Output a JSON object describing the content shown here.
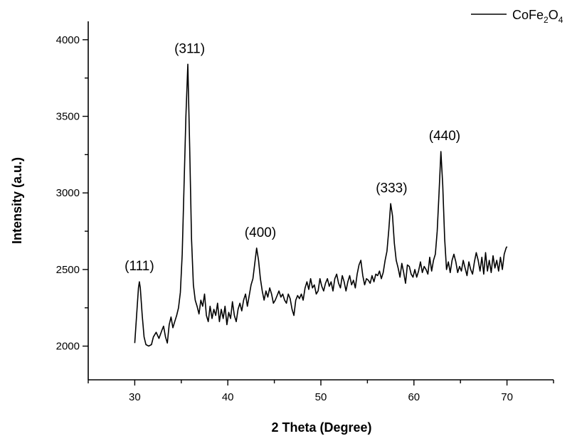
{
  "chart_data": {
    "type": "line",
    "xlabel": "2 Theta (Degree)",
    "ylabel": "Intensity (a.u.)",
    "xlim": [
      25,
      75
    ],
    "ylim": [
      1780,
      4120
    ],
    "xticks": [
      30,
      40,
      50,
      60,
      70
    ],
    "yticks": [
      2000,
      2500,
      3000,
      3500,
      4000
    ],
    "grid": false,
    "legend": {
      "placement": "top-right"
    },
    "series": [
      {
        "name": "CoFe2O4",
        "color": "#000000",
        "x": [
          30,
          30.2,
          30.4,
          30.5,
          30.6,
          30.8,
          31,
          31.2,
          31.5,
          31.8,
          32,
          32.3,
          32.6,
          32.9,
          33.1,
          33.3,
          33.5,
          33.7,
          33.9,
          34.1,
          34.3,
          34.5,
          34.7,
          34.9,
          35.1,
          35.3,
          35.5,
          35.7,
          35.9,
          36.1,
          36.3,
          36.5,
          36.7,
          36.9,
          37.1,
          37.3,
          37.5,
          37.7,
          37.9,
          38.1,
          38.3,
          38.5,
          38.7,
          38.9,
          39.1,
          39.3,
          39.5,
          39.7,
          39.9,
          40.1,
          40.3,
          40.5,
          40.7,
          40.9,
          41.1,
          41.3,
          41.5,
          41.7,
          41.9,
          42.1,
          42.3,
          42.5,
          42.7,
          42.9,
          43.1,
          43.3,
          43.5,
          43.7,
          43.9,
          44.1,
          44.3,
          44.5,
          44.7,
          44.9,
          45.1,
          45.3,
          45.5,
          45.7,
          45.9,
          46.1,
          46.3,
          46.5,
          46.7,
          46.9,
          47.1,
          47.3,
          47.5,
          47.7,
          47.9,
          48.1,
          48.3,
          48.5,
          48.7,
          48.9,
          49.1,
          49.3,
          49.5,
          49.7,
          49.9,
          50.1,
          50.3,
          50.5,
          50.7,
          50.9,
          51.1,
          51.3,
          51.5,
          51.7,
          51.9,
          52.1,
          52.3,
          52.5,
          52.7,
          52.9,
          53.1,
          53.3,
          53.5,
          53.7,
          53.9,
          54.1,
          54.3,
          54.5,
          54.7,
          54.9,
          55.1,
          55.3,
          55.5,
          55.7,
          55.9,
          56.1,
          56.3,
          56.5,
          56.7,
          56.9,
          57.1,
          57.3,
          57.5,
          57.7,
          57.9,
          58.1,
          58.3,
          58.5,
          58.7,
          58.9,
          59.1,
          59.3,
          59.5,
          59.7,
          59.9,
          60.1,
          60.3,
          60.5,
          60.7,
          60.9,
          61.1,
          61.3,
          61.5,
          61.7,
          61.9,
          62.1,
          62.3,
          62.5,
          62.7,
          62.9,
          63.1,
          63.3,
          63.5,
          63.7,
          63.9,
          64.1,
          64.3,
          64.5,
          64.7,
          64.9,
          65.1,
          65.3,
          65.5,
          65.7,
          65.9,
          66.1,
          66.3,
          66.5,
          66.7,
          66.9,
          67.1,
          67.3,
          67.5,
          67.7,
          67.9,
          68.1,
          68.3,
          68.5,
          68.7,
          68.9,
          69.1,
          69.3,
          69.5,
          69.7,
          69.9,
          70
        ],
        "y": [
          2020,
          2200,
          2380,
          2420,
          2380,
          2200,
          2060,
          2010,
          2000,
          2010,
          2060,
          2090,
          2050,
          2100,
          2130,
          2060,
          2020,
          2140,
          2190,
          2120,
          2160,
          2200,
          2250,
          2350,
          2600,
          3050,
          3500,
          3840,
          3300,
          2700,
          2400,
          2300,
          2260,
          2210,
          2300,
          2260,
          2340,
          2200,
          2160,
          2260,
          2180,
          2240,
          2200,
          2280,
          2160,
          2240,
          2180,
          2260,
          2140,
          2220,
          2180,
          2290,
          2200,
          2160,
          2240,
          2280,
          2230,
          2300,
          2340,
          2260,
          2330,
          2400,
          2440,
          2540,
          2640,
          2560,
          2440,
          2360,
          2300,
          2360,
          2320,
          2380,
          2340,
          2280,
          2300,
          2330,
          2360,
          2320,
          2340,
          2300,
          2280,
          2340,
          2310,
          2240,
          2200,
          2300,
          2330,
          2310,
          2340,
          2300,
          2380,
          2420,
          2370,
          2440,
          2380,
          2400,
          2340,
          2360,
          2440,
          2390,
          2360,
          2410,
          2440,
          2390,
          2420,
          2360,
          2440,
          2470,
          2410,
          2380,
          2460,
          2420,
          2360,
          2420,
          2460,
          2400,
          2430,
          2380,
          2470,
          2530,
          2560,
          2460,
          2400,
          2440,
          2430,
          2410,
          2460,
          2420,
          2470,
          2460,
          2490,
          2440,
          2480,
          2560,
          2620,
          2760,
          2930,
          2850,
          2670,
          2560,
          2510,
          2450,
          2540,
          2480,
          2410,
          2530,
          2520,
          2470,
          2450,
          2500,
          2450,
          2490,
          2550,
          2480,
          2520,
          2500,
          2470,
          2580,
          2490,
          2560,
          2600,
          2750,
          3000,
          3270,
          3050,
          2700,
          2500,
          2550,
          2480,
          2560,
          2600,
          2550,
          2480,
          2520,
          2490,
          2560,
          2510,
          2460,
          2550,
          2500,
          2470,
          2550,
          2610,
          2560,
          2490,
          2580,
          2470,
          2610,
          2490,
          2560,
          2480,
          2590,
          2510,
          2560,
          2490,
          2580,
          2500,
          2600,
          2640,
          2650
        ]
      }
    ],
    "legend_entry": {
      "label_prefix": "CoFe",
      "sub1": "2",
      "label_mid": "O",
      "sub2": "4"
    },
    "annotations": [
      {
        "text": "(111)",
        "x": 30.5,
        "y": 2420
      },
      {
        "text": "(311)",
        "x": 35.9,
        "y": 3840
      },
      {
        "text": "(400)",
        "x": 43.5,
        "y": 2640
      },
      {
        "text": "(333)",
        "x": 57.6,
        "y": 2930
      },
      {
        "text": "(440)",
        "x": 63.3,
        "y": 3270
      }
    ]
  }
}
